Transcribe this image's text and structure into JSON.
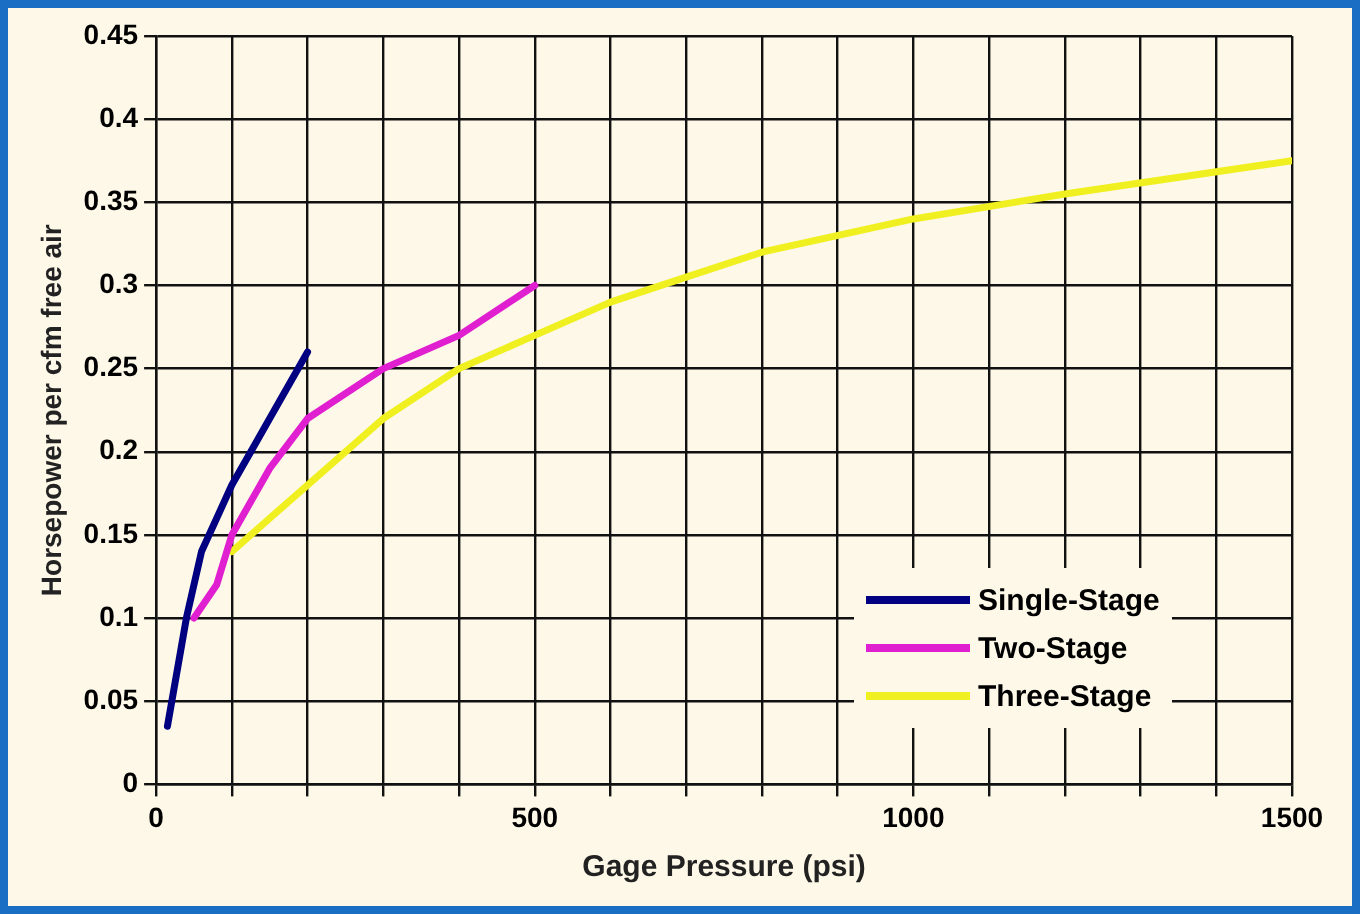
{
  "chart_data": {
    "type": "line",
    "xlabel": "Gage Pressure (psi)",
    "ylabel": "Horsepower per cfm free air",
    "xlim": [
      0,
      1500
    ],
    "xticks": [
      0,
      {
        "value": 100,
        "label": null
      },
      {
        "value": 200,
        "label": null
      },
      {
        "value": 300,
        "label": null
      },
      {
        "value": 400,
        "label": null
      },
      500,
      {
        "value": 600,
        "label": null
      },
      {
        "value": 700,
        "label": null
      },
      {
        "value": 800,
        "label": null
      },
      {
        "value": 900,
        "label": null
      },
      1000,
      {
        "value": 1100,
        "label": null
      },
      {
        "value": 1200,
        "label": null
      },
      {
        "value": 1300,
        "label": null
      },
      {
        "value": 1400,
        "label": null
      },
      1500
    ],
    "ylim": [
      0,
      0.45
    ],
    "yticks": [
      0,
      0.05,
      0.1,
      0.15,
      0.2,
      0.25,
      0.3,
      0.35,
      0.4,
      0.45
    ],
    "grid": true,
    "legend": "bottom right",
    "marker": "none",
    "line_style": "solid",
    "series": [
      {
        "name": "Single-Stage",
        "color": "#000080",
        "x": [
          15,
          40,
          60,
          100,
          150,
          200
        ],
        "values": [
          0.035,
          0.1,
          0.14,
          0.18,
          0.22,
          0.26
        ]
      },
      {
        "name": "Two-Stage",
        "color": "#e020d0",
        "x": [
          50,
          80,
          100,
          150,
          200,
          300,
          400,
          500
        ],
        "values": [
          0.1,
          0.12,
          0.15,
          0.19,
          0.22,
          0.25,
          0.27,
          0.3
        ]
      },
      {
        "name": "Three-Stage",
        "color": "#f0f020",
        "x": [
          100,
          200,
          300,
          400,
          500,
          600,
          700,
          800,
          1000,
          1200,
          1500
        ],
        "values": [
          0.14,
          0.18,
          0.22,
          0.25,
          0.27,
          0.29,
          0.305,
          0.32,
          0.34,
          0.355,
          0.375
        ]
      }
    ]
  }
}
